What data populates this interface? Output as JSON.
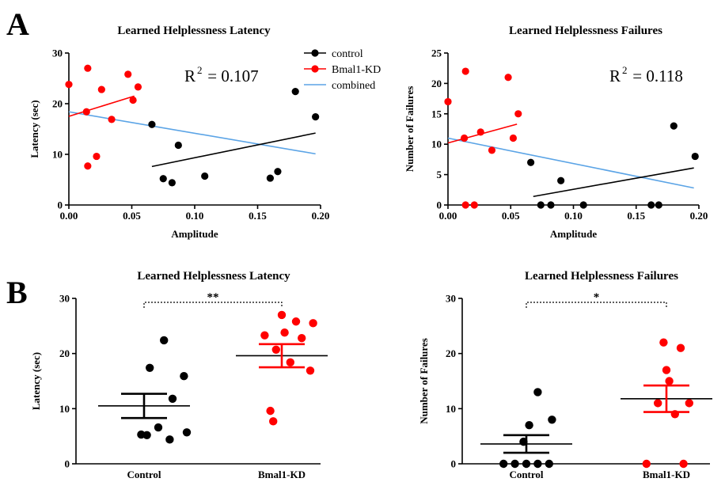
{
  "panel_labels": {
    "a": "A",
    "b": "B"
  },
  "colors": {
    "control": "#000000",
    "bmal1": "#ff0000",
    "combined": "#5ba4e6",
    "axis": "#000000"
  },
  "legend": [
    {
      "key": "control",
      "label": "control",
      "color": "#000000",
      "marker": true
    },
    {
      "key": "bmal1",
      "label": "Bmal1-KD",
      "color": "#ff0000",
      "marker": true
    },
    {
      "key": "combined",
      "label": "combined",
      "color": "#5ba4e6",
      "marker": false
    }
  ],
  "chart_data": [
    {
      "id": "a-latency",
      "type": "scatter",
      "title": "Learned Helplessness Latency",
      "xlabel": "Amplitude",
      "ylabel": "Latency (sec)",
      "xlim": [
        0,
        0.2
      ],
      "ylim": [
        0,
        30
      ],
      "xticks": [
        "0.00",
        "0.05",
        "0.10",
        "0.15",
        "0.20"
      ],
      "yticks": [
        "0",
        "10",
        "20",
        "30"
      ],
      "annotation": {
        "r2_label": "R",
        "r2_sup": "2",
        "r2_value": " = 0.107"
      },
      "series": [
        {
          "name": "control",
          "color": "#000000",
          "points": [
            [
              0.066,
              15.9
            ],
            [
              0.075,
              5.2
            ],
            [
              0.082,
              4.4
            ],
            [
              0.087,
              11.8
            ],
            [
              0.108,
              5.7
            ],
            [
              0.16,
              5.3
            ],
            [
              0.166,
              6.6
            ],
            [
              0.18,
              22.4
            ],
            [
              0.196,
              17.4
            ]
          ],
          "fit": [
            [
              0.066,
              7.6
            ],
            [
              0.196,
              14.2
            ]
          ]
        },
        {
          "name": "Bmal1-KD",
          "color": "#ff0000",
          "points": [
            [
              0.0,
              23.8
            ],
            [
              0.014,
              18.4
            ],
            [
              0.015,
              27.0
            ],
            [
              0.015,
              7.7
            ],
            [
              0.022,
              9.6
            ],
            [
              0.026,
              22.8
            ],
            [
              0.034,
              16.9
            ],
            [
              0.047,
              25.8
            ],
            [
              0.051,
              20.7
            ],
            [
              0.055,
              23.3
            ]
          ],
          "fit": [
            [
              0.0,
              17.5
            ],
            [
              0.052,
              21.5
            ]
          ]
        },
        {
          "name": "combined",
          "color": "#5ba4e6",
          "points": [],
          "fit": [
            [
              0.0,
              18.4
            ],
            [
              0.196,
              10.1
            ]
          ]
        }
      ]
    },
    {
      "id": "a-failures",
      "type": "scatter",
      "title": "Learned Helplessness Failures",
      "xlabel": "Amplitude",
      "ylabel": "Number of Failures",
      "xlim": [
        0,
        0.2
      ],
      "ylim": [
        0,
        25
      ],
      "xticks": [
        "0.00",
        "0.05",
        "0.10",
        "0.15",
        "0.20"
      ],
      "yticks": [
        "0",
        "5",
        "10",
        "15",
        "20",
        "25"
      ],
      "annotation": {
        "r2_label": "R",
        "r2_sup": "2",
        "r2_value": " = 0.118"
      },
      "series": [
        {
          "name": "control",
          "color": "#000000",
          "points": [
            [
              0.066,
              7
            ],
            [
              0.074,
              0
            ],
            [
              0.082,
              0
            ],
            [
              0.09,
              4
            ],
            [
              0.108,
              0
            ],
            [
              0.162,
              0
            ],
            [
              0.168,
              0
            ],
            [
              0.18,
              13
            ],
            [
              0.197,
              8
            ]
          ],
          "fit": [
            [
              0.068,
              1.4
            ],
            [
              0.196,
              6.1
            ]
          ]
        },
        {
          "name": "Bmal1-KD",
          "color": "#ff0000",
          "points": [
            [
              0.0,
              17
            ],
            [
              0.013,
              11
            ],
            [
              0.014,
              22
            ],
            [
              0.014,
              0
            ],
            [
              0.021,
              0
            ],
            [
              0.026,
              12
            ],
            [
              0.035,
              9
            ],
            [
              0.048,
              21
            ],
            [
              0.052,
              11
            ],
            [
              0.056,
              15
            ]
          ],
          "fit": [
            [
              0.0,
              10.2
            ],
            [
              0.055,
              13.3
            ]
          ]
        },
        {
          "name": "combined",
          "color": "#5ba4e6",
          "points": [],
          "fit": [
            [
              0.0,
              11.0
            ],
            [
              0.196,
              2.8
            ]
          ]
        }
      ]
    },
    {
      "id": "b-latency",
      "type": "scatter",
      "title": "Learned Helplessness Latency",
      "xlabel": "",
      "ylabel": "Latency (sec)",
      "ylim": [
        0,
        30
      ],
      "yticks": [
        "0",
        "10",
        "20",
        "30"
      ],
      "categories": [
        "Control",
        "Bmal1-KD"
      ],
      "significance": "**",
      "groups": [
        {
          "name": "Control",
          "color": "#000000",
          "mean": 10.5,
          "sem_low": 8.3,
          "sem_high": 12.7,
          "points": [
            [
              0.85,
              22.4
            ],
            [
              0.6,
              17.4
            ],
            [
              1.2,
              15.9
            ],
            [
              1.0,
              11.8
            ],
            [
              0.75,
              6.6
            ],
            [
              1.25,
              5.7
            ],
            [
              0.45,
              5.3
            ],
            [
              0.55,
              5.2
            ],
            [
              0.95,
              4.4
            ]
          ]
        },
        {
          "name": "Bmal1-KD",
          "color": "#ff0000",
          "mean": 19.6,
          "sem_low": 17.5,
          "sem_high": 21.7,
          "points": [
            [
              0.5,
              27.0
            ],
            [
              0.75,
              25.8
            ],
            [
              1.05,
              25.5
            ],
            [
              0.2,
              23.3
            ],
            [
              0.55,
              23.8
            ],
            [
              0.85,
              22.8
            ],
            [
              0.4,
              20.7
            ],
            [
              0.65,
              18.4
            ],
            [
              1.0,
              16.9
            ],
            [
              0.3,
              9.6
            ],
            [
              0.35,
              7.7
            ]
          ]
        }
      ]
    },
    {
      "id": "b-failures",
      "type": "scatter",
      "title": "Learned  Helplessness Failures",
      "xlabel": "",
      "ylabel": "Number of Failures",
      "ylim": [
        0,
        30
      ],
      "yticks": [
        "0",
        "10",
        "20",
        "30"
      ],
      "categories": [
        "Control",
        "Bmal1-KD"
      ],
      "significance": "*",
      "groups": [
        {
          "name": "Control",
          "color": "#000000",
          "mean": 3.6,
          "sem_low": 2.0,
          "sem_high": 5.2,
          "points": [
            [
              0.7,
              13
            ],
            [
              0.95,
              8
            ],
            [
              0.55,
              7
            ],
            [
              0.45,
              4
            ],
            [
              0.1,
              0
            ],
            [
              0.3,
              0
            ],
            [
              0.5,
              0
            ],
            [
              0.7,
              0
            ],
            [
              0.9,
              0
            ]
          ]
        },
        {
          "name": "Bmal1-KD",
          "color": "#ff0000",
          "mean": 11.8,
          "sem_low": 9.4,
          "sem_high": 14.2,
          "points": [
            [
              0.45,
              22
            ],
            [
              0.75,
              21
            ],
            [
              0.5,
              17
            ],
            [
              0.55,
              15
            ],
            [
              0.9,
              11
            ],
            [
              0.35,
              11
            ],
            [
              0.65,
              9
            ],
            [
              0.15,
              0
            ],
            [
              0.8,
              0
            ]
          ]
        }
      ]
    }
  ]
}
